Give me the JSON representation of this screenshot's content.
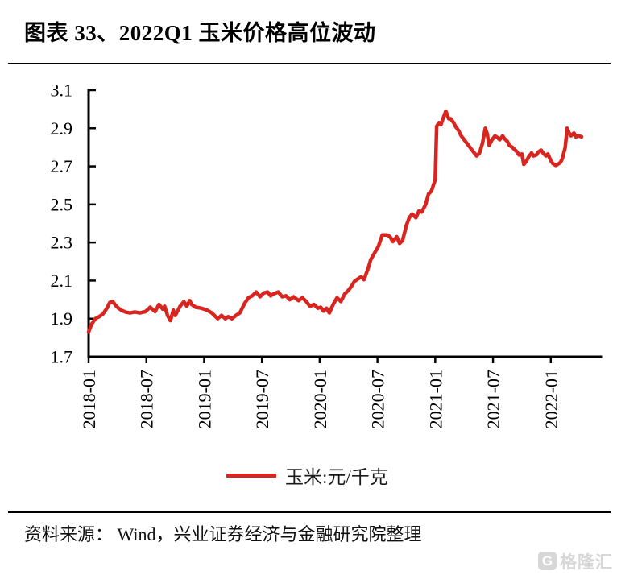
{
  "header": {
    "title": "图表 33、2022Q1 玉米价格高位波动"
  },
  "legend": {
    "label": "玉米:元/千克"
  },
  "footer": {
    "source": "资料来源： Wind，兴业证券经济与金融研究院整理"
  },
  "watermark": {
    "logo_letter": "G",
    "text": "格隆汇"
  },
  "colors": {
    "line": "#d9251f",
    "axis": "#000000",
    "watermark": "#d7d7d7"
  },
  "chart_data": {
    "type": "line",
    "title": "2022Q1 玉米价格高位波动",
    "xlabel": "",
    "ylabel": "",
    "unit": "元/千克",
    "ylim": [
      1.7,
      3.1
    ],
    "yticks": [
      "1.7",
      "1.9",
      "2.1",
      "2.3",
      "2.5",
      "2.7",
      "2.9",
      "3.1"
    ],
    "xticks": [
      "2018-01",
      "2018-07",
      "2019-01",
      "2019-07",
      "2020-01",
      "2020-07",
      "2021-01",
      "2021-07",
      "2022-01"
    ],
    "xtick_interval_months": 6,
    "xlim_months": [
      0,
      53.2
    ],
    "grid": false,
    "legend_position": "bottom-center",
    "series": [
      {
        "name": "玉米:元/千克",
        "color": "#d9251f",
        "x_unit": "months since 2018-01",
        "points": [
          [
            0,
            1.83
          ],
          [
            0.3,
            1.87
          ],
          [
            0.7,
            1.9
          ],
          [
            1.1,
            1.91
          ],
          [
            1.5,
            1.925
          ],
          [
            1.9,
            1.955
          ],
          [
            2.2,
            1.985
          ],
          [
            2.5,
            1.99
          ],
          [
            2.8,
            1.97
          ],
          [
            3.1,
            1.955
          ],
          [
            3.4,
            1.945
          ],
          [
            3.8,
            1.935
          ],
          [
            4.3,
            1.93
          ],
          [
            4.8,
            1.935
          ],
          [
            5.3,
            1.93
          ],
          [
            5.9,
            1.937
          ],
          [
            6.4,
            1.96
          ],
          [
            6.9,
            1.937
          ],
          [
            7.3,
            1.975
          ],
          [
            7.7,
            1.95
          ],
          [
            7.9,
            1.965
          ],
          [
            8.2,
            1.917
          ],
          [
            8.5,
            1.89
          ],
          [
            8.8,
            1.945
          ],
          [
            9.0,
            1.917
          ],
          [
            9.5,
            1.965
          ],
          [
            9.9,
            1.99
          ],
          [
            10.2,
            1.965
          ],
          [
            10.5,
            1.995
          ],
          [
            10.7,
            1.975
          ],
          [
            11.1,
            1.96
          ],
          [
            11.7,
            1.955
          ],
          [
            12.3,
            1.945
          ],
          [
            12.8,
            1.93
          ],
          [
            13.4,
            1.9
          ],
          [
            13.8,
            1.917
          ],
          [
            14.2,
            1.9
          ],
          [
            14.5,
            1.91
          ],
          [
            14.9,
            1.9
          ],
          [
            15.3,
            1.917
          ],
          [
            15.7,
            1.93
          ],
          [
            16.2,
            1.98
          ],
          [
            16.6,
            2.01
          ],
          [
            17.0,
            2.02
          ],
          [
            17.4,
            2.04
          ],
          [
            17.8,
            2.015
          ],
          [
            18.2,
            2.035
          ],
          [
            18.6,
            2.04
          ],
          [
            18.9,
            2.02
          ],
          [
            19.2,
            2.03
          ],
          [
            19.7,
            2.04
          ],
          [
            20.1,
            2.015
          ],
          [
            20.5,
            2.02
          ],
          [
            20.9,
            2.0
          ],
          [
            21.3,
            2.015
          ],
          [
            21.8,
            1.995
          ],
          [
            22.2,
            2.01
          ],
          [
            22.6,
            1.99
          ],
          [
            23.0,
            1.965
          ],
          [
            23.4,
            1.975
          ],
          [
            23.8,
            1.955
          ],
          [
            24.1,
            1.96
          ],
          [
            24.4,
            1.94
          ],
          [
            24.7,
            1.955
          ],
          [
            25.0,
            1.93
          ],
          [
            25.4,
            1.975
          ],
          [
            25.8,
            2.01
          ],
          [
            26.2,
            1.99
          ],
          [
            26.6,
            2.03
          ],
          [
            27.0,
            2.05
          ],
          [
            27.3,
            2.07
          ],
          [
            27.6,
            2.095
          ],
          [
            28.0,
            2.11
          ],
          [
            28.3,
            2.12
          ],
          [
            28.6,
            2.105
          ],
          [
            29.0,
            2.16
          ],
          [
            29.3,
            2.21
          ],
          [
            29.7,
            2.245
          ],
          [
            30.1,
            2.28
          ],
          [
            30.5,
            2.34
          ],
          [
            31.0,
            2.34
          ],
          [
            31.3,
            2.33
          ],
          [
            31.6,
            2.305
          ],
          [
            32.0,
            2.33
          ],
          [
            32.3,
            2.295
          ],
          [
            32.6,
            2.31
          ],
          [
            33.0,
            2.39
          ],
          [
            33.3,
            2.43
          ],
          [
            33.6,
            2.45
          ],
          [
            34.0,
            2.43
          ],
          [
            34.3,
            2.465
          ],
          [
            34.6,
            2.46
          ],
          [
            35.0,
            2.5
          ],
          [
            35.3,
            2.555
          ],
          [
            35.6,
            2.57
          ],
          [
            36.0,
            2.63
          ],
          [
            36.15,
            2.91
          ],
          [
            36.4,
            2.93
          ],
          [
            36.6,
            2.92
          ],
          [
            36.8,
            2.95
          ],
          [
            37.1,
            2.99
          ],
          [
            37.4,
            2.95
          ],
          [
            37.6,
            2.95
          ],
          [
            37.9,
            2.93
          ],
          [
            38.1,
            2.91
          ],
          [
            38.4,
            2.89
          ],
          [
            38.7,
            2.86
          ],
          [
            39.0,
            2.84
          ],
          [
            39.3,
            2.82
          ],
          [
            39.6,
            2.8
          ],
          [
            39.9,
            2.78
          ],
          [
            40.3,
            2.755
          ],
          [
            40.6,
            2.77
          ],
          [
            40.9,
            2.82
          ],
          [
            41.2,
            2.9
          ],
          [
            41.4,
            2.87
          ],
          [
            41.6,
            2.81
          ],
          [
            41.9,
            2.84
          ],
          [
            42.2,
            2.86
          ],
          [
            42.5,
            2.85
          ],
          [
            42.7,
            2.84
          ],
          [
            43.0,
            2.86
          ],
          [
            43.2,
            2.845
          ],
          [
            43.5,
            2.83
          ],
          [
            43.7,
            2.81
          ],
          [
            44.0,
            2.8
          ],
          [
            44.2,
            2.79
          ],
          [
            44.5,
            2.775
          ],
          [
            44.7,
            2.76
          ],
          [
            45.0,
            2.765
          ],
          [
            45.2,
            2.71
          ],
          [
            45.5,
            2.73
          ],
          [
            45.7,
            2.75
          ],
          [
            46.0,
            2.77
          ],
          [
            46.2,
            2.755
          ],
          [
            46.5,
            2.76
          ],
          [
            46.7,
            2.775
          ],
          [
            47.0,
            2.785
          ],
          [
            47.2,
            2.77
          ],
          [
            47.5,
            2.755
          ],
          [
            47.7,
            2.765
          ],
          [
            48.0,
            2.73
          ],
          [
            48.2,
            2.715
          ],
          [
            48.5,
            2.705
          ],
          [
            48.7,
            2.71
          ],
          [
            49.0,
            2.72
          ],
          [
            49.2,
            2.74
          ],
          [
            49.5,
            2.8
          ],
          [
            49.7,
            2.9
          ],
          [
            49.9,
            2.875
          ],
          [
            50.1,
            2.86
          ],
          [
            50.4,
            2.875
          ],
          [
            50.6,
            2.855
          ],
          [
            50.9,
            2.86
          ],
          [
            51.2,
            2.855
          ]
        ]
      }
    ]
  }
}
